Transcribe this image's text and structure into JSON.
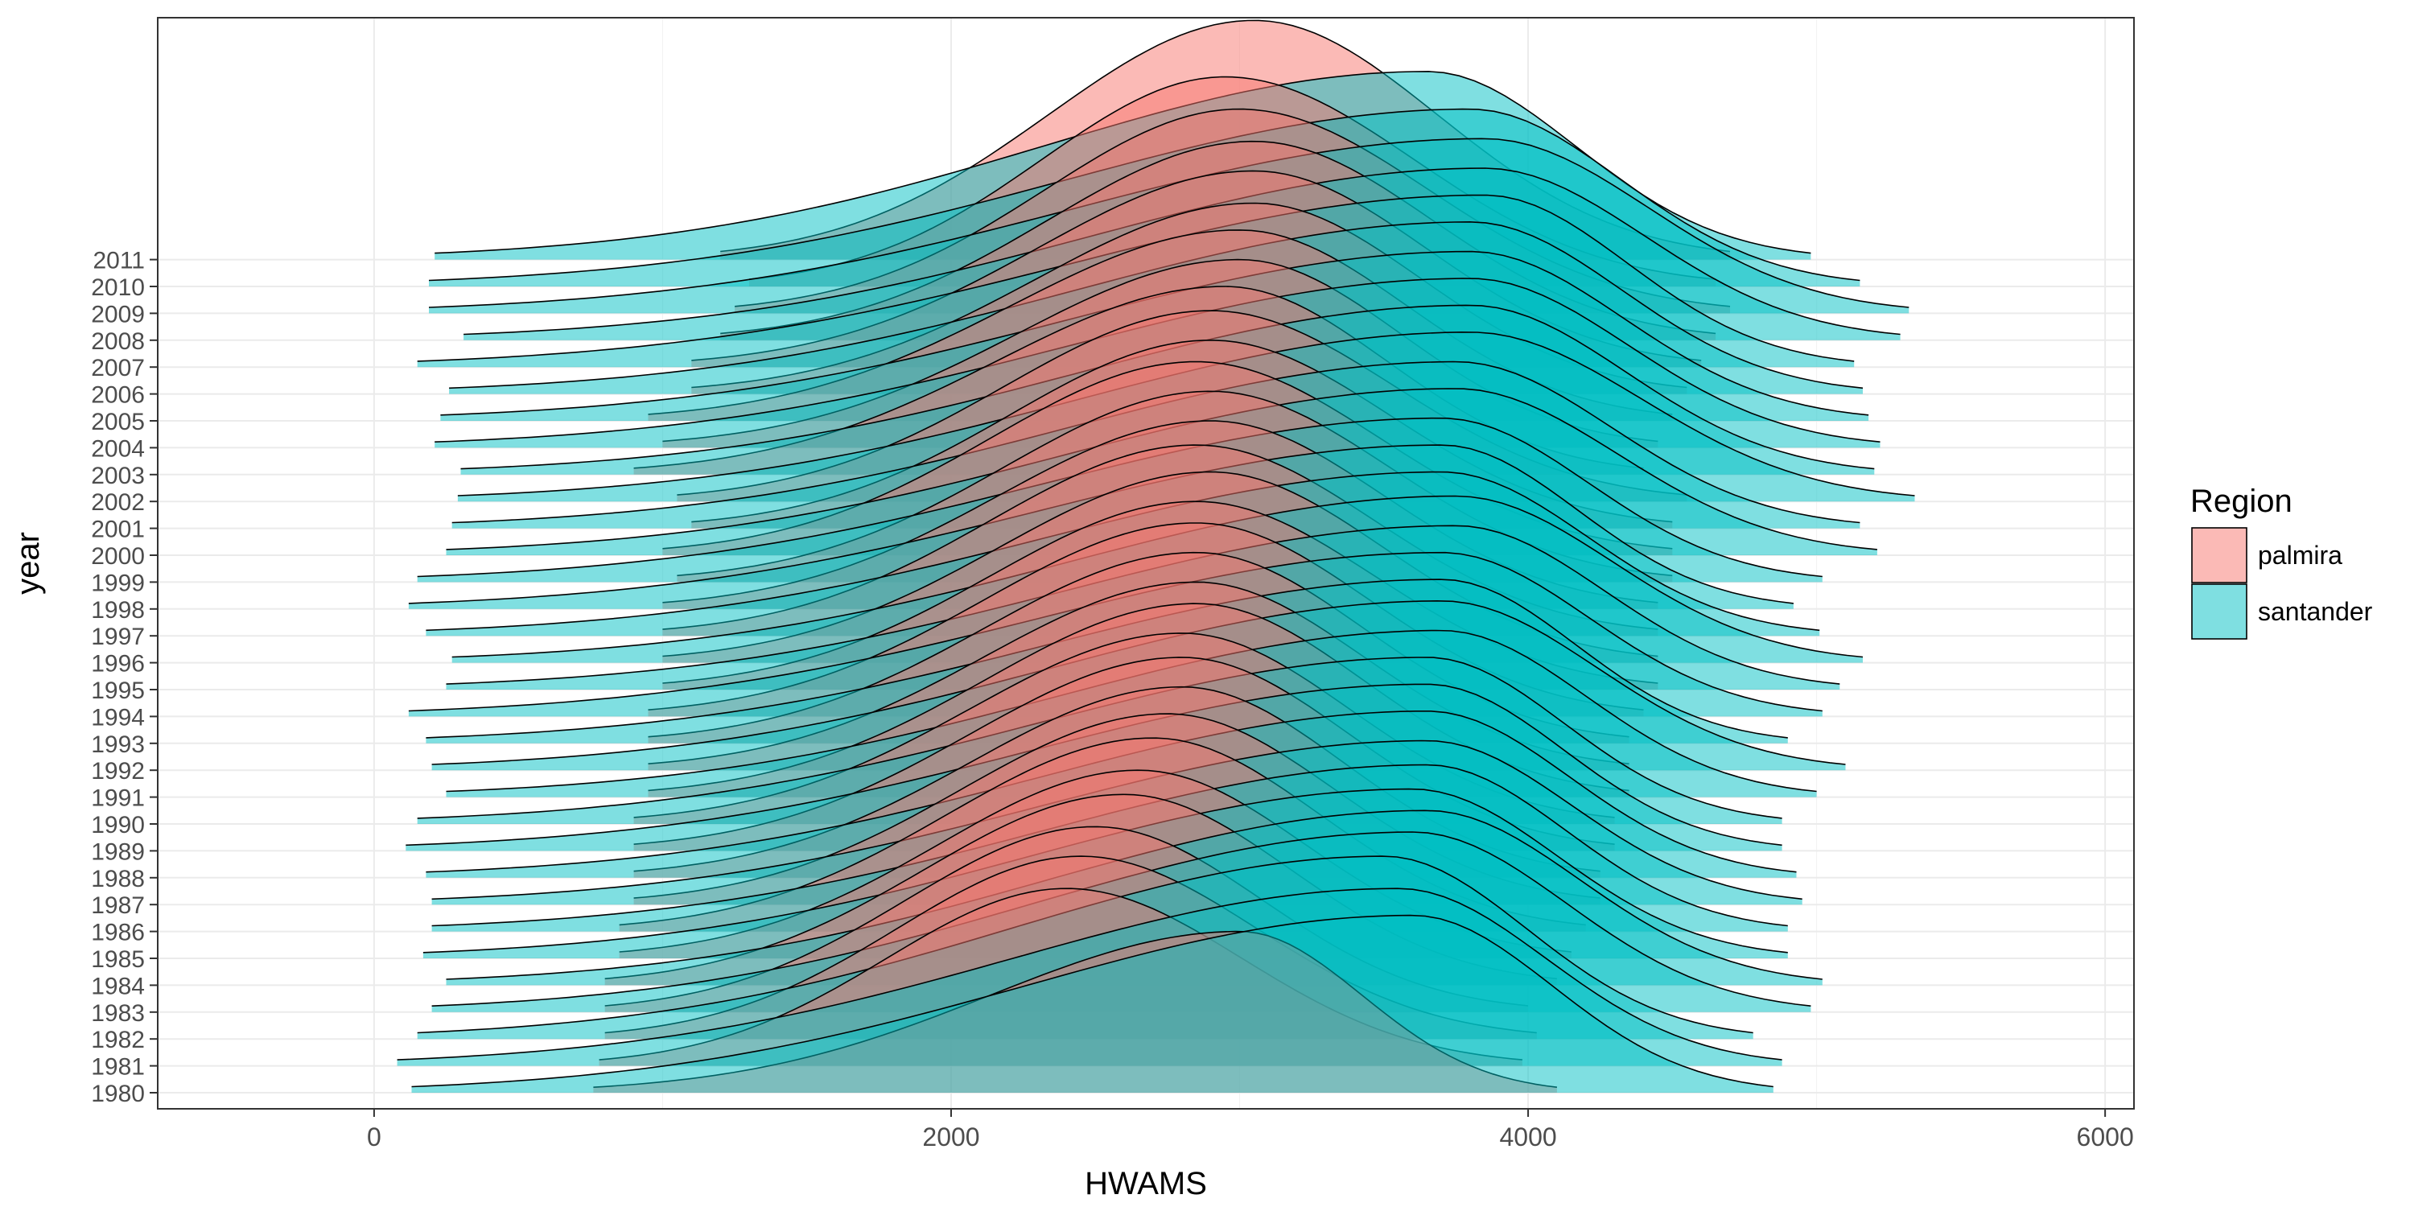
{
  "chart_data": {
    "type": "ridgeline",
    "title": "",
    "xlabel": "HWAMS",
    "ylabel": "year",
    "xlim": [
      -750,
      6100
    ],
    "x_ticks": [
      0,
      2000,
      4000,
      6000
    ],
    "x_tick_labels": [
      "0",
      "2000",
      "4000",
      "6000"
    ],
    "categories": [
      "1980",
      "1981",
      "1982",
      "1983",
      "1984",
      "1985",
      "1986",
      "1987",
      "1988",
      "1989",
      "1990",
      "1991",
      "1992",
      "1993",
      "1994",
      "1995",
      "1996",
      "1997",
      "1998",
      "1999",
      "2000",
      "2001",
      "2002",
      "2003",
      "2004",
      "2005",
      "2006",
      "2007",
      "2008",
      "2009",
      "2010",
      "2011"
    ],
    "grid": true,
    "legend": {
      "title": "Region",
      "position": "right",
      "entries": [
        {
          "name": "palmira",
          "color": "#F8766D"
        },
        {
          "name": "santander",
          "color": "#00BFC4"
        }
      ]
    },
    "series": [
      {
        "name": "palmira",
        "color": "#F8766D",
        "ridges": [
          {
            "year": "1980",
            "range": [
              760,
              4100
            ],
            "mean": 2300,
            "sd": 0,
            "mode": 3000,
            "peak_rows": 6.0
          },
          {
            "year": "1981",
            "range": [
              780,
              3980
            ],
            "mean": 2400,
            "sd": 620,
            "mode": 2400,
            "peak_rows": 6.6
          },
          {
            "year": "1982",
            "range": [
              800,
              4030
            ],
            "mean": 2400,
            "sd": 650,
            "mode": 2450,
            "peak_rows": 6.8
          },
          {
            "year": "1983",
            "range": [
              800,
              4000
            ],
            "mean": 2400,
            "sd": 640,
            "mode": 2500,
            "peak_rows": 6.9
          },
          {
            "year": "1984",
            "range": [
              800,
              4100
            ],
            "mean": 2400,
            "sd": 650,
            "mode": 2600,
            "peak_rows": 7.1
          },
          {
            "year": "1985",
            "range": [
              850,
              4150
            ],
            "mean": 2450,
            "sd": 650,
            "mode": 2650,
            "peak_rows": 7.0
          },
          {
            "year": "1986",
            "range": [
              850,
              4200
            ],
            "mean": 2500,
            "sd": 650,
            "mode": 2700,
            "peak_rows": 7.2
          },
          {
            "year": "1987",
            "range": [
              900,
              4250
            ],
            "mean": 2500,
            "sd": 650,
            "mode": 2750,
            "peak_rows": 7.1
          },
          {
            "year": "1988",
            "range": [
              900,
              4250
            ],
            "mean": 2550,
            "sd": 660,
            "mode": 2800,
            "peak_rows": 7.1
          },
          {
            "year": "1989",
            "range": [
              900,
              4300
            ],
            "mean": 2550,
            "sd": 650,
            "mode": 2800,
            "peak_rows": 7.2
          },
          {
            "year": "1990",
            "range": [
              900,
              4300
            ],
            "mean": 2600,
            "sd": 650,
            "mode": 2800,
            "peak_rows": 7.1
          },
          {
            "year": "1991",
            "range": [
              950,
              4350
            ],
            "mean": 2600,
            "sd": 650,
            "mode": 2850,
            "peak_rows": 7.2
          },
          {
            "year": "1992",
            "range": [
              950,
              4350
            ],
            "mean": 2600,
            "sd": 650,
            "mode": 2850,
            "peak_rows": 7.0
          },
          {
            "year": "1993",
            "range": [
              950,
              4350
            ],
            "mean": 2650,
            "sd": 660,
            "mode": 2850,
            "peak_rows": 7.1
          },
          {
            "year": "1994",
            "range": [
              950,
              4400
            ],
            "mean": 2650,
            "sd": 660,
            "mode": 2850,
            "peak_rows": 7.2
          },
          {
            "year": "1995",
            "range": [
              1000,
              4450
            ],
            "mean": 2650,
            "sd": 650,
            "mode": 2850,
            "peak_rows": 7.0
          },
          {
            "year": "1996",
            "range": [
              1000,
              4450
            ],
            "mean": 2700,
            "sd": 650,
            "mode": 2900,
            "peak_rows": 7.1
          },
          {
            "year": "1997",
            "range": [
              1000,
              4450
            ],
            "mean": 2700,
            "sd": 650,
            "mode": 2850,
            "peak_rows": 7.1
          },
          {
            "year": "1998",
            "range": [
              1000,
              4450
            ],
            "mean": 2750,
            "sd": 650,
            "mode": 2900,
            "peak_rows": 7.0
          },
          {
            "year": "1999",
            "range": [
              1050,
              4500
            ],
            "mean": 2750,
            "sd": 650,
            "mode": 2900,
            "peak_rows": 7.1
          },
          {
            "year": "2000",
            "range": [
              1000,
              4500
            ],
            "mean": 2750,
            "sd": 660,
            "mode": 2850,
            "peak_rows": 7.2
          },
          {
            "year": "2001",
            "range": [
              1100,
              4500
            ],
            "mean": 2750,
            "sd": 650,
            "mode": 2900,
            "peak_rows": 7.0
          },
          {
            "year": "2002",
            "range": [
              1050,
              4550
            ],
            "mean": 2800,
            "sd": 650,
            "mode": 2900,
            "peak_rows": 7.1
          },
          {
            "year": "2003",
            "range": [
              900,
              4400
            ],
            "mean": 2800,
            "sd": 660,
            "mode": 2950,
            "peak_rows": 7.0
          },
          {
            "year": "2004",
            "range": [
              1000,
              4450
            ],
            "mean": 2800,
            "sd": 650,
            "mode": 3000,
            "peak_rows": 7.0
          },
          {
            "year": "2005",
            "range": [
              950,
              4500
            ],
            "mean": 2850,
            "sd": 650,
            "mode": 3000,
            "peak_rows": 7.1
          },
          {
            "year": "2006",
            "range": [
              1100,
              4550
            ],
            "mean": 2850,
            "sd": 650,
            "mode": 3050,
            "peak_rows": 7.1
          },
          {
            "year": "2007",
            "range": [
              1100,
              4600
            ],
            "mean": 2900,
            "sd": 650,
            "mode": 3050,
            "peak_rows": 7.3
          },
          {
            "year": "2008",
            "range": [
              1200,
              4650
            ],
            "mean": 2900,
            "sd": 650,
            "mode": 3050,
            "peak_rows": 7.4
          },
          {
            "year": "2009",
            "range": [
              1250,
              4700
            ],
            "mean": 2950,
            "sd": 650,
            "mode": 3000,
            "peak_rows": 7.6
          },
          {
            "year": "2010",
            "range": [
              1300,
              4650
            ],
            "mean": 2950,
            "sd": 650,
            "mode": 2950,
            "peak_rows": 7.8
          },
          {
            "year": "2011",
            "range": [
              1200,
              4700
            ],
            "mean": 2850,
            "sd": 650,
            "mode": 3050,
            "peak_rows": 8.9
          }
        ]
      },
      {
        "name": "santander",
        "color": "#00BFC4",
        "ridges": [
          {
            "year": "1980",
            "range": [
              130,
              4850
            ],
            "mode": 3600,
            "peak_rows": 6.6
          },
          {
            "year": "1981",
            "range": [
              80,
              4880
            ],
            "mode": 3550,
            "peak_rows": 6.6
          },
          {
            "year": "1982",
            "range": [
              150,
              4780
            ],
            "mode": 3500,
            "peak_rows": 6.8
          },
          {
            "year": "1983",
            "range": [
              200,
              4980
            ],
            "mode": 3600,
            "peak_rows": 6.7
          },
          {
            "year": "1984",
            "range": [
              250,
              5020
            ],
            "mode": 3650,
            "peak_rows": 6.5
          },
          {
            "year": "1985",
            "range": [
              170,
              4900
            ],
            "mode": 3600,
            "peak_rows": 6.3
          },
          {
            "year": "1986",
            "range": [
              200,
              4900
            ],
            "mode": 3650,
            "peak_rows": 6.2
          },
          {
            "year": "1987",
            "range": [
              200,
              4950
            ],
            "mode": 3650,
            "peak_rows": 6.1
          },
          {
            "year": "1988",
            "range": [
              180,
              4930
            ],
            "mode": 3650,
            "peak_rows": 6.2
          },
          {
            "year": "1989",
            "range": [
              110,
              4880
            ],
            "mode": 3650,
            "peak_rows": 6.2
          },
          {
            "year": "1990",
            "range": [
              150,
              4880
            ],
            "mode": 3650,
            "peak_rows": 6.2
          },
          {
            "year": "1991",
            "range": [
              250,
              5000
            ],
            "mode": 3700,
            "peak_rows": 6.2
          },
          {
            "year": "1992",
            "range": [
              200,
              5100
            ],
            "mode": 3700,
            "peak_rows": 6.3
          },
          {
            "year": "1993",
            "range": [
              180,
              4900
            ],
            "mode": 3700,
            "peak_rows": 6.1
          },
          {
            "year": "1994",
            "range": [
              120,
              5020
            ],
            "mode": 3700,
            "peak_rows": 6.1
          },
          {
            "year": "1995",
            "range": [
              250,
              5080
            ],
            "mode": 3750,
            "peak_rows": 6.1
          },
          {
            "year": "1996",
            "range": [
              270,
              5160
            ],
            "mode": 3750,
            "peak_rows": 6.2
          },
          {
            "year": "1997",
            "range": [
              180,
              5010
            ],
            "mode": 3700,
            "peak_rows": 6.1
          },
          {
            "year": "1998",
            "range": [
              120,
              4920
            ],
            "mode": 3700,
            "peak_rows": 6.1
          },
          {
            "year": "1999",
            "range": [
              150,
              5020
            ],
            "mode": 3700,
            "peak_rows": 6.1
          },
          {
            "year": "2000",
            "range": [
              250,
              5210
            ],
            "mode": 3750,
            "peak_rows": 6.2
          },
          {
            "year": "2001",
            "range": [
              270,
              5150
            ],
            "mode": 3750,
            "peak_rows": 6.2
          },
          {
            "year": "2002",
            "range": [
              290,
              5340
            ],
            "mode": 3800,
            "peak_rows": 6.3
          },
          {
            "year": "2003",
            "range": [
              300,
              5200
            ],
            "mode": 3800,
            "peak_rows": 6.3
          },
          {
            "year": "2004",
            "range": [
              210,
              5220
            ],
            "mode": 3800,
            "peak_rows": 6.3
          },
          {
            "year": "2005",
            "range": [
              230,
              5180
            ],
            "mode": 3800,
            "peak_rows": 6.3
          },
          {
            "year": "2006",
            "range": [
              260,
              5160
            ],
            "mode": 3800,
            "peak_rows": 6.4
          },
          {
            "year": "2007",
            "range": [
              150,
              5130
            ],
            "mode": 3850,
            "peak_rows": 6.4
          },
          {
            "year": "2008",
            "range": [
              310,
              5290
            ],
            "mode": 3850,
            "peak_rows": 6.4
          },
          {
            "year": "2009",
            "range": [
              190,
              5320
            ],
            "mode": 3850,
            "peak_rows": 6.5
          },
          {
            "year": "2010",
            "range": [
              190,
              5150
            ],
            "mode": 3800,
            "peak_rows": 6.6
          },
          {
            "year": "2011",
            "range": [
              210,
              4980
            ],
            "mode": 3650,
            "peak_rows": 7.0
          }
        ]
      }
    ]
  }
}
